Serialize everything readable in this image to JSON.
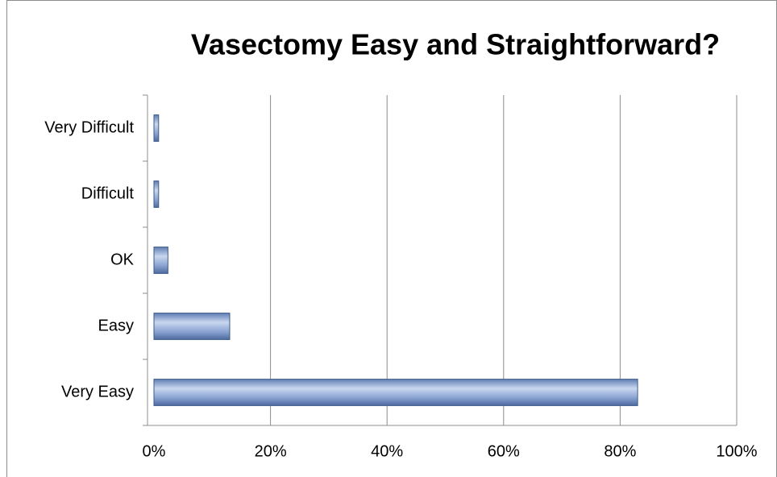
{
  "chart_data": {
    "type": "bar",
    "orientation": "horizontal",
    "title": "Vasectomy Easy and Straightforward?",
    "categories": [
      "Very Easy",
      "Easy",
      "OK",
      "Difficult",
      "Very Difficult"
    ],
    "values": [
      83,
      13,
      2.4,
      0.8,
      0.8
    ],
    "color": "#7b96c8",
    "xlim": [
      0,
      100
    ],
    "xticks": [
      {
        "value": 0,
        "label": "0%"
      },
      {
        "value": 20,
        "label": "20%"
      },
      {
        "value": 40,
        "label": "40%"
      },
      {
        "value": 60,
        "label": "60%"
      },
      {
        "value": 80,
        "label": "80%"
      },
      {
        "value": 100,
        "label": "100%"
      }
    ],
    "grid": true
  }
}
